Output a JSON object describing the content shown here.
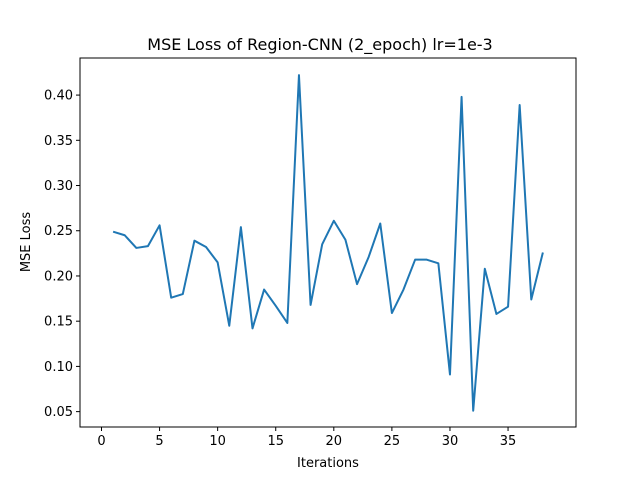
{
  "chart_data": {
    "type": "line",
    "title": "MSE Loss of Region-CNN (2_epoch) lr=1e-3",
    "xlabel": "Iterations",
    "ylabel": "MSE Loss",
    "xlim": [
      -1.85,
      40.85
    ],
    "ylim": [
      0.033,
      0.441
    ],
    "xticks": [
      0,
      5,
      10,
      15,
      20,
      25,
      30,
      35
    ],
    "xtick_labels": [
      "0",
      "5",
      "10",
      "15",
      "20",
      "25",
      "30",
      "35"
    ],
    "yticks": [
      0.05,
      0.1,
      0.15,
      0.2,
      0.25,
      0.3,
      0.35,
      0.4
    ],
    "ytick_labels": [
      "0.05",
      "0.10",
      "0.15",
      "0.20",
      "0.25",
      "0.30",
      "0.35",
      "0.40"
    ],
    "grid": false,
    "series_color": "#1f77b4",
    "x": [
      1,
      2,
      3,
      4,
      5,
      6,
      7,
      8,
      9,
      10,
      11,
      12,
      13,
      14,
      15,
      16,
      17,
      18,
      19,
      20,
      21,
      22,
      23,
      24,
      25,
      26,
      27,
      28,
      29,
      30,
      31,
      32,
      33,
      34,
      35,
      36,
      37,
      38
    ],
    "y": [
      0.249,
      0.245,
      0.231,
      0.233,
      0.256,
      0.176,
      0.18,
      0.239,
      0.232,
      0.215,
      0.145,
      0.254,
      0.142,
      0.185,
      0.167,
      0.148,
      0.422,
      0.168,
      0.235,
      0.261,
      0.24,
      0.191,
      0.221,
      0.258,
      0.159,
      0.185,
      0.218,
      0.218,
      0.214,
      0.091,
      0.398,
      0.051,
      0.208,
      0.158,
      0.166,
      0.389,
      0.174,
      0.226
    ]
  }
}
